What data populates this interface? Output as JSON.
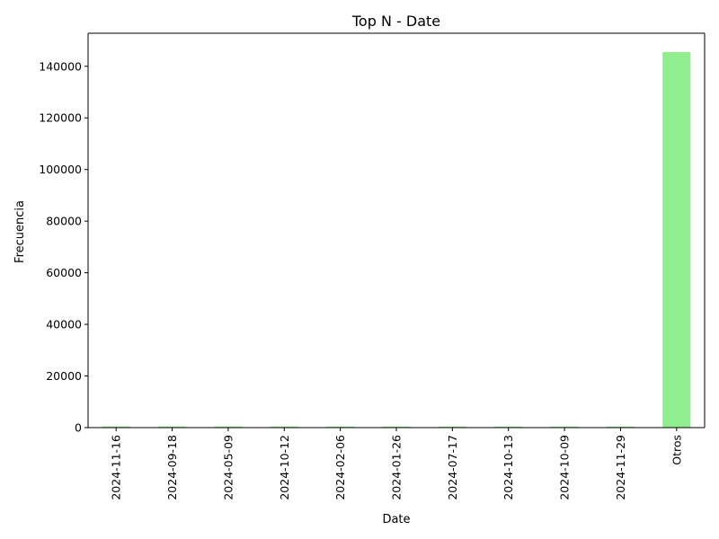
{
  "chart_data": {
    "type": "bar",
    "title": "Top N - Date",
    "xlabel": "Date",
    "ylabel": "Frecuencia",
    "categories": [
      "2024-11-16",
      "2024-09-18",
      "2024-05-09",
      "2024-10-12",
      "2024-02-06",
      "2024-01-26",
      "2024-07-17",
      "2024-10-13",
      "2024-10-09",
      "2024-11-29",
      "Otros"
    ],
    "values": [
      450,
      440,
      430,
      425,
      420,
      415,
      410,
      405,
      400,
      395,
      145500
    ],
    "ylim": [
      0,
      152800
    ],
    "yticks": [
      0,
      20000,
      40000,
      60000,
      80000,
      100000,
      120000,
      140000
    ],
    "bar_color": "#90ee90",
    "grid": false,
    "legend": false
  }
}
